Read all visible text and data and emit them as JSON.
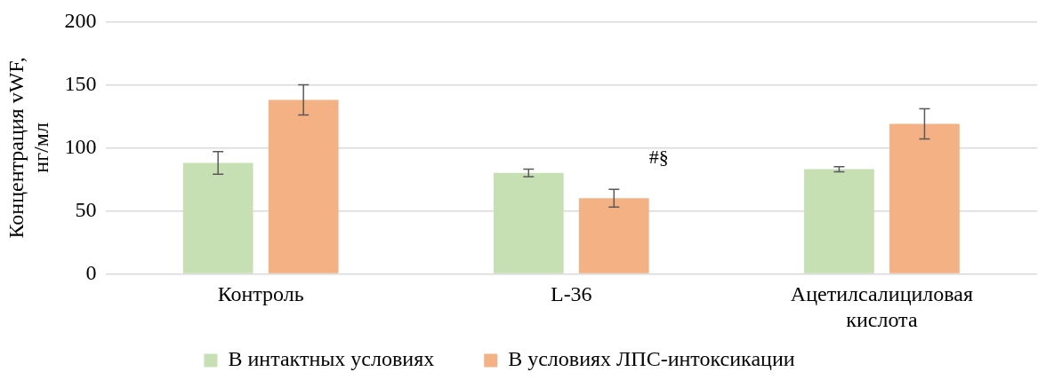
{
  "chart_data": {
    "type": "bar",
    "ylabel": "Концентрация vWF, нг/мл",
    "categories": [
      "Контроль",
      "L-36",
      "Ацетилсалициловая кислота"
    ],
    "series": [
      {
        "name": "В интактных условиях",
        "color": "#c6e0b4",
        "values": [
          88,
          80,
          83
        ],
        "errors": [
          9,
          3,
          2
        ]
      },
      {
        "name": "В условиях ЛПС-интоксикации",
        "color": "#f4b183",
        "values": [
          138,
          60,
          119
        ],
        "errors": [
          12,
          7,
          12
        ]
      }
    ],
    "ylim": [
      0,
      200
    ],
    "yticks": [
      0,
      50,
      100,
      150,
      200
    ],
    "grid": "y",
    "legend": "bottom",
    "annotations": [
      "#§"
    ]
  }
}
